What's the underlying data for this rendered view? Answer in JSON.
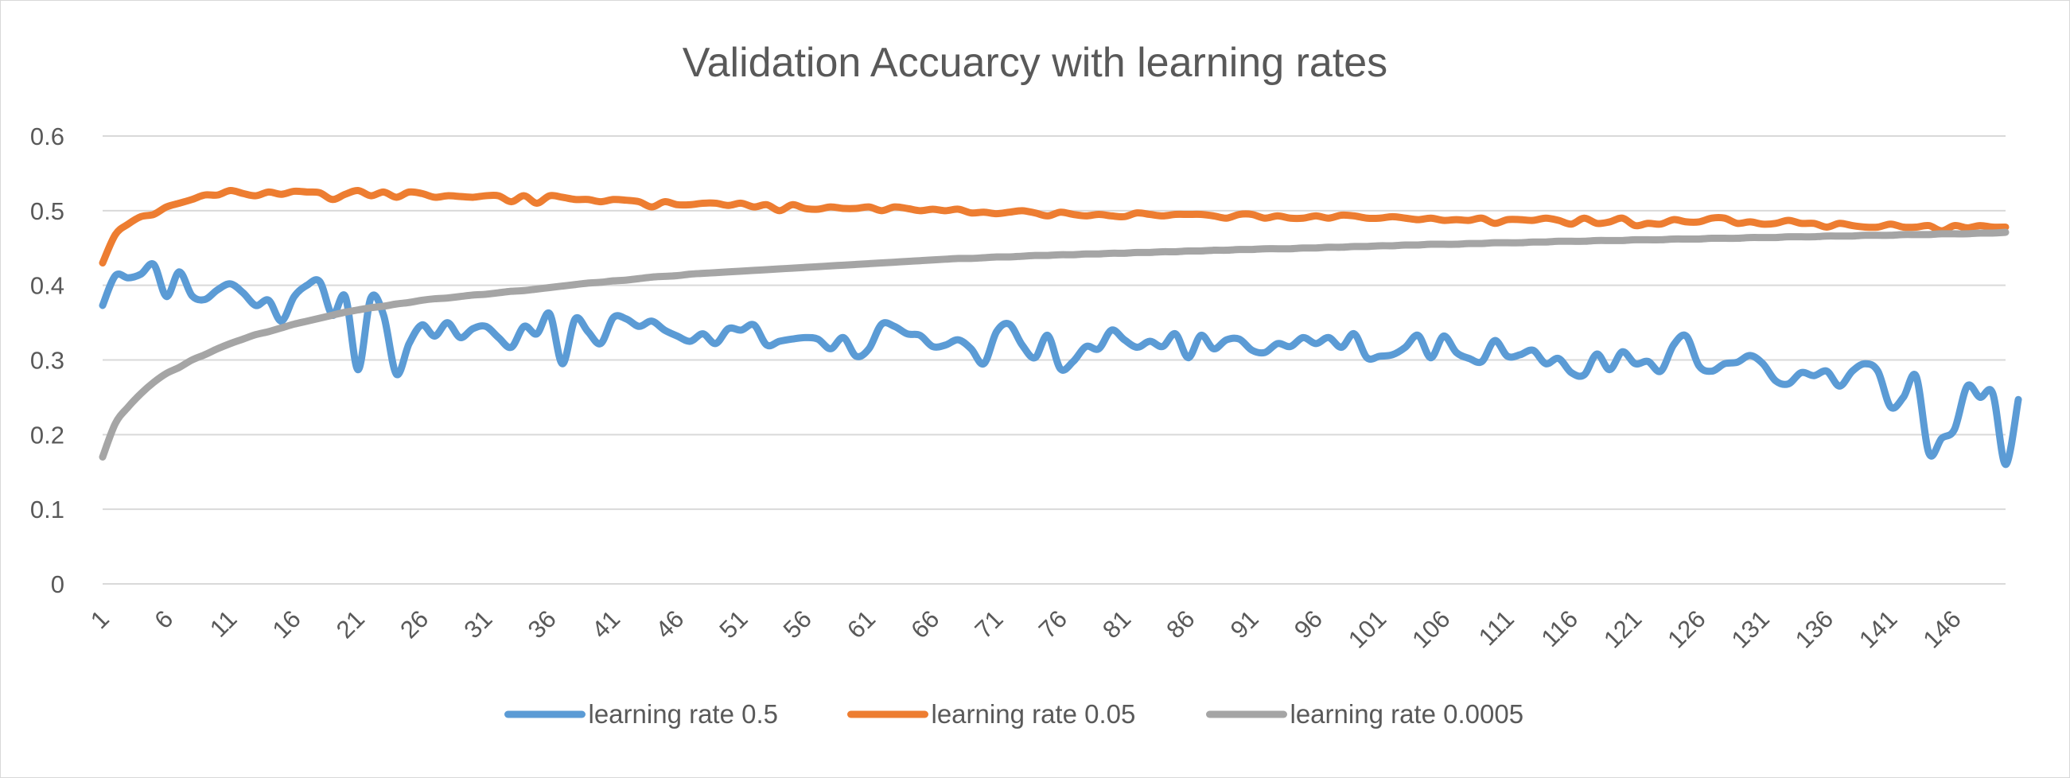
{
  "chart_data": {
    "type": "line",
    "title": "Validation Accuarcy with learning rates",
    "xlabel": "",
    "ylabel": "",
    "ylim": [
      0,
      0.6
    ],
    "yticks": [
      "0",
      "0.1",
      "0.2",
      "0.3",
      "0.4",
      "0.5",
      "0.6"
    ],
    "xtick_labels": [
      "1",
      "6",
      "11",
      "16",
      "21",
      "26",
      "31",
      "36",
      "41",
      "46",
      "51",
      "56",
      "61",
      "66",
      "71",
      "76",
      "81",
      "86",
      "91",
      "96",
      "101",
      "106",
      "111",
      "116",
      "121",
      "126",
      "131",
      "136",
      "141",
      "146"
    ],
    "x_count": 150,
    "grid": "horizontal",
    "legend_position": "bottom",
    "series": [
      {
        "name": "learning rate 0.5",
        "color": "#5b9bd5",
        "values": [
          0.373,
          0.413,
          0.41,
          0.415,
          0.428,
          0.385,
          0.418,
          0.386,
          0.381,
          0.394,
          0.402,
          0.39,
          0.373,
          0.38,
          0.352,
          0.385,
          0.4,
          0.405,
          0.36,
          0.385,
          0.287,
          0.383,
          0.36,
          0.281,
          0.322,
          0.347,
          0.332,
          0.35,
          0.33,
          0.342,
          0.345,
          0.33,
          0.317,
          0.345,
          0.335,
          0.362,
          0.295,
          0.355,
          0.338,
          0.322,
          0.357,
          0.355,
          0.345,
          0.352,
          0.34,
          0.332,
          0.325,
          0.335,
          0.322,
          0.342,
          0.34,
          0.347,
          0.32,
          0.325,
          0.328,
          0.33,
          0.328,
          0.315,
          0.33,
          0.305,
          0.315,
          0.348,
          0.345,
          0.335,
          0.333,
          0.318,
          0.32,
          0.327,
          0.315,
          0.295,
          0.338,
          0.348,
          0.32,
          0.303,
          0.333,
          0.288,
          0.298,
          0.318,
          0.315,
          0.34,
          0.327,
          0.317,
          0.325,
          0.318,
          0.335,
          0.303,
          0.333,
          0.315,
          0.327,
          0.328,
          0.313,
          0.31,
          0.322,
          0.318,
          0.33,
          0.322,
          0.33,
          0.317,
          0.335,
          0.303,
          0.305,
          0.307,
          0.317,
          0.333,
          0.303,
          0.332,
          0.31,
          0.302,
          0.298,
          0.326,
          0.305,
          0.307,
          0.313,
          0.295,
          0.302,
          0.283,
          0.28,
          0.308,
          0.287,
          0.311,
          0.295,
          0.298,
          0.285,
          0.32,
          0.332,
          0.292,
          0.285,
          0.295,
          0.297,
          0.306,
          0.295,
          0.272,
          0.268,
          0.283,
          0.279,
          0.285,
          0.265,
          0.285,
          0.295,
          0.285,
          0.237,
          0.25,
          0.278,
          0.175,
          0.195,
          0.207,
          0.265,
          0.25,
          0.255,
          0.16,
          0.247
        ]
      },
      {
        "name": "learning rate 0.05",
        "color": "#ed7d31",
        "values": [
          0.43,
          0.468,
          0.482,
          0.492,
          0.495,
          0.505,
          0.51,
          0.515,
          0.521,
          0.521,
          0.527,
          0.523,
          0.52,
          0.525,
          0.522,
          0.526,
          0.525,
          0.524,
          0.515,
          0.522,
          0.527,
          0.52,
          0.525,
          0.518,
          0.525,
          0.523,
          0.518,
          0.52,
          0.519,
          0.518,
          0.52,
          0.52,
          0.512,
          0.52,
          0.51,
          0.52,
          0.518,
          0.515,
          0.515,
          0.512,
          0.515,
          0.514,
          0.512,
          0.505,
          0.512,
          0.508,
          0.508,
          0.51,
          0.51,
          0.507,
          0.51,
          0.505,
          0.508,
          0.5,
          0.508,
          0.503,
          0.502,
          0.505,
          0.503,
          0.503,
          0.505,
          0.5,
          0.505,
          0.503,
          0.5,
          0.502,
          0.5,
          0.502,
          0.497,
          0.498,
          0.496,
          0.498,
          0.5,
          0.497,
          0.493,
          0.498,
          0.495,
          0.493,
          0.495,
          0.493,
          0.492,
          0.497,
          0.495,
          0.493,
          0.495,
          0.495,
          0.495,
          0.493,
          0.49,
          0.495,
          0.495,
          0.49,
          0.493,
          0.49,
          0.49,
          0.493,
          0.49,
          0.494,
          0.493,
          0.49,
          0.49,
          0.492,
          0.49,
          0.488,
          0.49,
          0.487,
          0.488,
          0.487,
          0.49,
          0.483,
          0.488,
          0.488,
          0.487,
          0.49,
          0.487,
          0.482,
          0.49,
          0.483,
          0.485,
          0.49,
          0.48,
          0.483,
          0.482,
          0.488,
          0.485,
          0.485,
          0.49,
          0.49,
          0.483,
          0.485,
          0.482,
          0.483,
          0.487,
          0.483,
          0.483,
          0.478,
          0.483,
          0.48,
          0.478,
          0.478,
          0.482,
          0.478,
          0.478,
          0.48,
          0.473,
          0.48,
          0.477,
          0.48,
          0.478,
          0.478
        ]
      },
      {
        "name": "learning rate 0.0005",
        "color": "#a5a5a5",
        "values": [
          0.17,
          0.215,
          0.237,
          0.255,
          0.27,
          0.282,
          0.29,
          0.3,
          0.307,
          0.315,
          0.322,
          0.328,
          0.334,
          0.338,
          0.343,
          0.348,
          0.352,
          0.356,
          0.36,
          0.364,
          0.367,
          0.37,
          0.372,
          0.375,
          0.377,
          0.38,
          0.382,
          0.383,
          0.385,
          0.387,
          0.388,
          0.39,
          0.392,
          0.393,
          0.395,
          0.397,
          0.399,
          0.401,
          0.403,
          0.404,
          0.406,
          0.407,
          0.409,
          0.411,
          0.412,
          0.413,
          0.415,
          0.416,
          0.417,
          0.418,
          0.419,
          0.42,
          0.421,
          0.422,
          0.423,
          0.424,
          0.425,
          0.426,
          0.427,
          0.428,
          0.429,
          0.43,
          0.431,
          0.432,
          0.433,
          0.434,
          0.435,
          0.436,
          0.436,
          0.437,
          0.438,
          0.438,
          0.439,
          0.44,
          0.44,
          0.441,
          0.441,
          0.442,
          0.442,
          0.443,
          0.443,
          0.444,
          0.444,
          0.445,
          0.445,
          0.446,
          0.446,
          0.447,
          0.447,
          0.448,
          0.448,
          0.449,
          0.449,
          0.449,
          0.45,
          0.45,
          0.451,
          0.451,
          0.452,
          0.452,
          0.453,
          0.453,
          0.454,
          0.454,
          0.455,
          0.455,
          0.455,
          0.456,
          0.456,
          0.457,
          0.457,
          0.457,
          0.458,
          0.458,
          0.459,
          0.459,
          0.459,
          0.46,
          0.46,
          0.46,
          0.461,
          0.461,
          0.461,
          0.462,
          0.462,
          0.462,
          0.463,
          0.463,
          0.463,
          0.464,
          0.464,
          0.464,
          0.465,
          0.465,
          0.465,
          0.466,
          0.466,
          0.466,
          0.467,
          0.467,
          0.467,
          0.468,
          0.468,
          0.468,
          0.469,
          0.469,
          0.469,
          0.47,
          0.47,
          0.471
        ]
      }
    ]
  }
}
